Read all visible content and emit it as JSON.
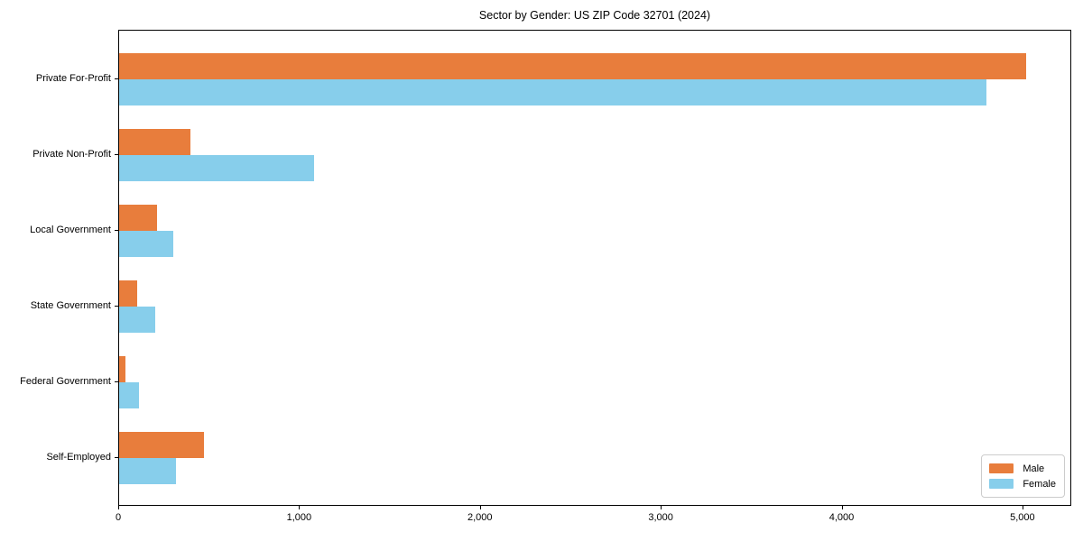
{
  "chart_data": {
    "type": "bar",
    "orientation": "horizontal",
    "title": "Sector by Gender: US ZIP Code 32701 (2024)",
    "categories": [
      "Private For-Profit",
      "Private Non-Profit",
      "Local Government",
      "State Government",
      "Federal Government",
      "Self-Employed"
    ],
    "series": [
      {
        "name": "Male",
        "color": "#E87D3C",
        "values": [
          5015,
          395,
          210,
          100,
          35,
          470
        ]
      },
      {
        "name": "Female",
        "color": "#87CEEB",
        "values": [
          4795,
          1080,
          300,
          200,
          110,
          315
        ]
      }
    ],
    "xlim": [
      0,
      5270
    ],
    "xticks": [
      0,
      1000,
      2000,
      3000,
      4000,
      5000
    ],
    "xtick_labels": [
      "0",
      "1,000",
      "2,000",
      "3,000",
      "4,000",
      "5,000"
    ],
    "ylabel": "",
    "xlabel": "",
    "grid": false,
    "legend_position": "lower right"
  }
}
